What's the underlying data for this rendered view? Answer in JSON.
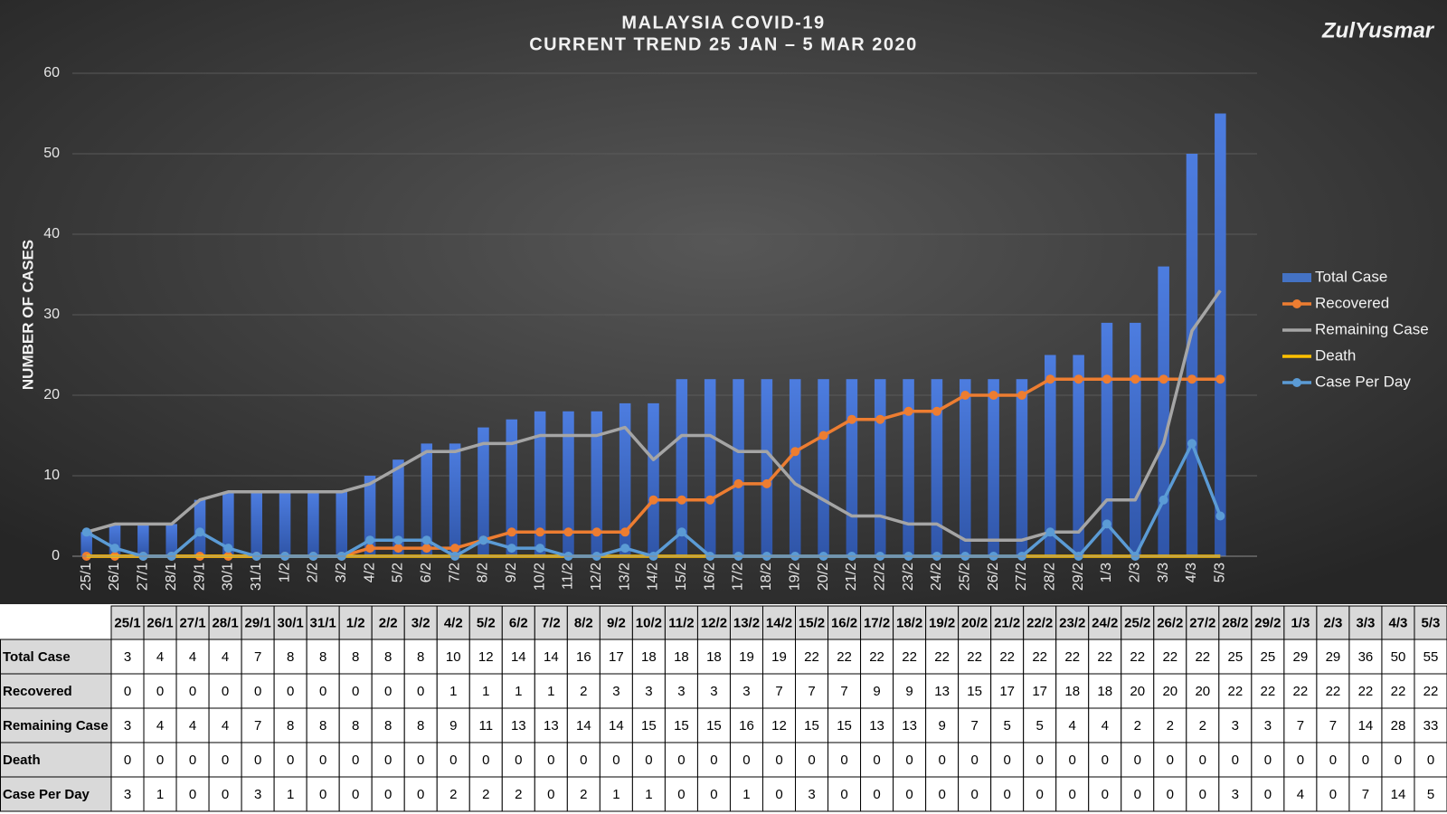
{
  "logo": "ZulYusmar",
  "chart_data": {
    "type": "bar",
    "title": "MALAYSIA COVID-19",
    "subtitle": "CURRENT TREND 25 JAN – 5 MAR 2020",
    "y_label": "NUMBER OF CASES",
    "ylim": [
      0,
      60
    ],
    "yticks": [
      0,
      10,
      20,
      30,
      40,
      50,
      60
    ],
    "grid": true,
    "legend": "right",
    "categories": [
      "25/1",
      "26/1",
      "27/1",
      "28/1",
      "29/1",
      "30/1",
      "31/1",
      "1/2",
      "2/2",
      "3/2",
      "4/2",
      "5/2",
      "6/2",
      "7/2",
      "8/2",
      "9/2",
      "10/2",
      "11/2",
      "12/2",
      "13/2",
      "14/2",
      "15/2",
      "16/2",
      "17/2",
      "18/2",
      "19/2",
      "20/2",
      "21/2",
      "22/2",
      "23/2",
      "24/2",
      "25/2",
      "26/2",
      "27/2",
      "28/2",
      "29/2",
      "1/3",
      "2/3",
      "3/3",
      "4/3",
      "5/3"
    ],
    "series": [
      {
        "name": "Total Case",
        "type": "bar",
        "color": "#4472c4",
        "values": [
          3,
          4,
          4,
          4,
          7,
          8,
          8,
          8,
          8,
          8,
          10,
          12,
          14,
          14,
          16,
          17,
          18,
          18,
          18,
          19,
          19,
          22,
          22,
          22,
          22,
          22,
          22,
          22,
          22,
          22,
          22,
          22,
          22,
          22,
          25,
          25,
          29,
          29,
          36,
          50,
          55
        ]
      },
      {
        "name": "Recovered",
        "type": "line",
        "markers": true,
        "color": "#ed7d31",
        "values": [
          0,
          0,
          0,
          0,
          0,
          0,
          0,
          0,
          0,
          0,
          1,
          1,
          1,
          1,
          2,
          3,
          3,
          3,
          3,
          3,
          7,
          7,
          7,
          9,
          9,
          13,
          15,
          17,
          17,
          18,
          18,
          20,
          20,
          20,
          22,
          22,
          22,
          22,
          22,
          22,
          22
        ]
      },
      {
        "name": "Remaining Case",
        "type": "line",
        "markers": false,
        "color": "#a5a5a5",
        "values": [
          3,
          4,
          4,
          4,
          7,
          8,
          8,
          8,
          8,
          8,
          9,
          11,
          13,
          13,
          14,
          14,
          15,
          15,
          15,
          16,
          12,
          15,
          15,
          13,
          13,
          9,
          7,
          5,
          5,
          4,
          4,
          2,
          2,
          2,
          3,
          3,
          7,
          7,
          14,
          28,
          33
        ]
      },
      {
        "name": "Death",
        "type": "line",
        "markers": false,
        "color": "#ffc000",
        "values": [
          0,
          0,
          0,
          0,
          0,
          0,
          0,
          0,
          0,
          0,
          0,
          0,
          0,
          0,
          0,
          0,
          0,
          0,
          0,
          0,
          0,
          0,
          0,
          0,
          0,
          0,
          0,
          0,
          0,
          0,
          0,
          0,
          0,
          0,
          0,
          0,
          0,
          0,
          0,
          0,
          0
        ]
      },
      {
        "name": "Case Per Day",
        "type": "line",
        "markers": true,
        "color": "#5b9bd5",
        "values": [
          3,
          1,
          0,
          0,
          3,
          1,
          0,
          0,
          0,
          0,
          2,
          2,
          2,
          0,
          2,
          1,
          1,
          0,
          0,
          1,
          0,
          3,
          0,
          0,
          0,
          0,
          0,
          0,
          0,
          0,
          0,
          0,
          0,
          0,
          3,
          0,
          4,
          0,
          7,
          14,
          5
        ]
      }
    ]
  }
}
